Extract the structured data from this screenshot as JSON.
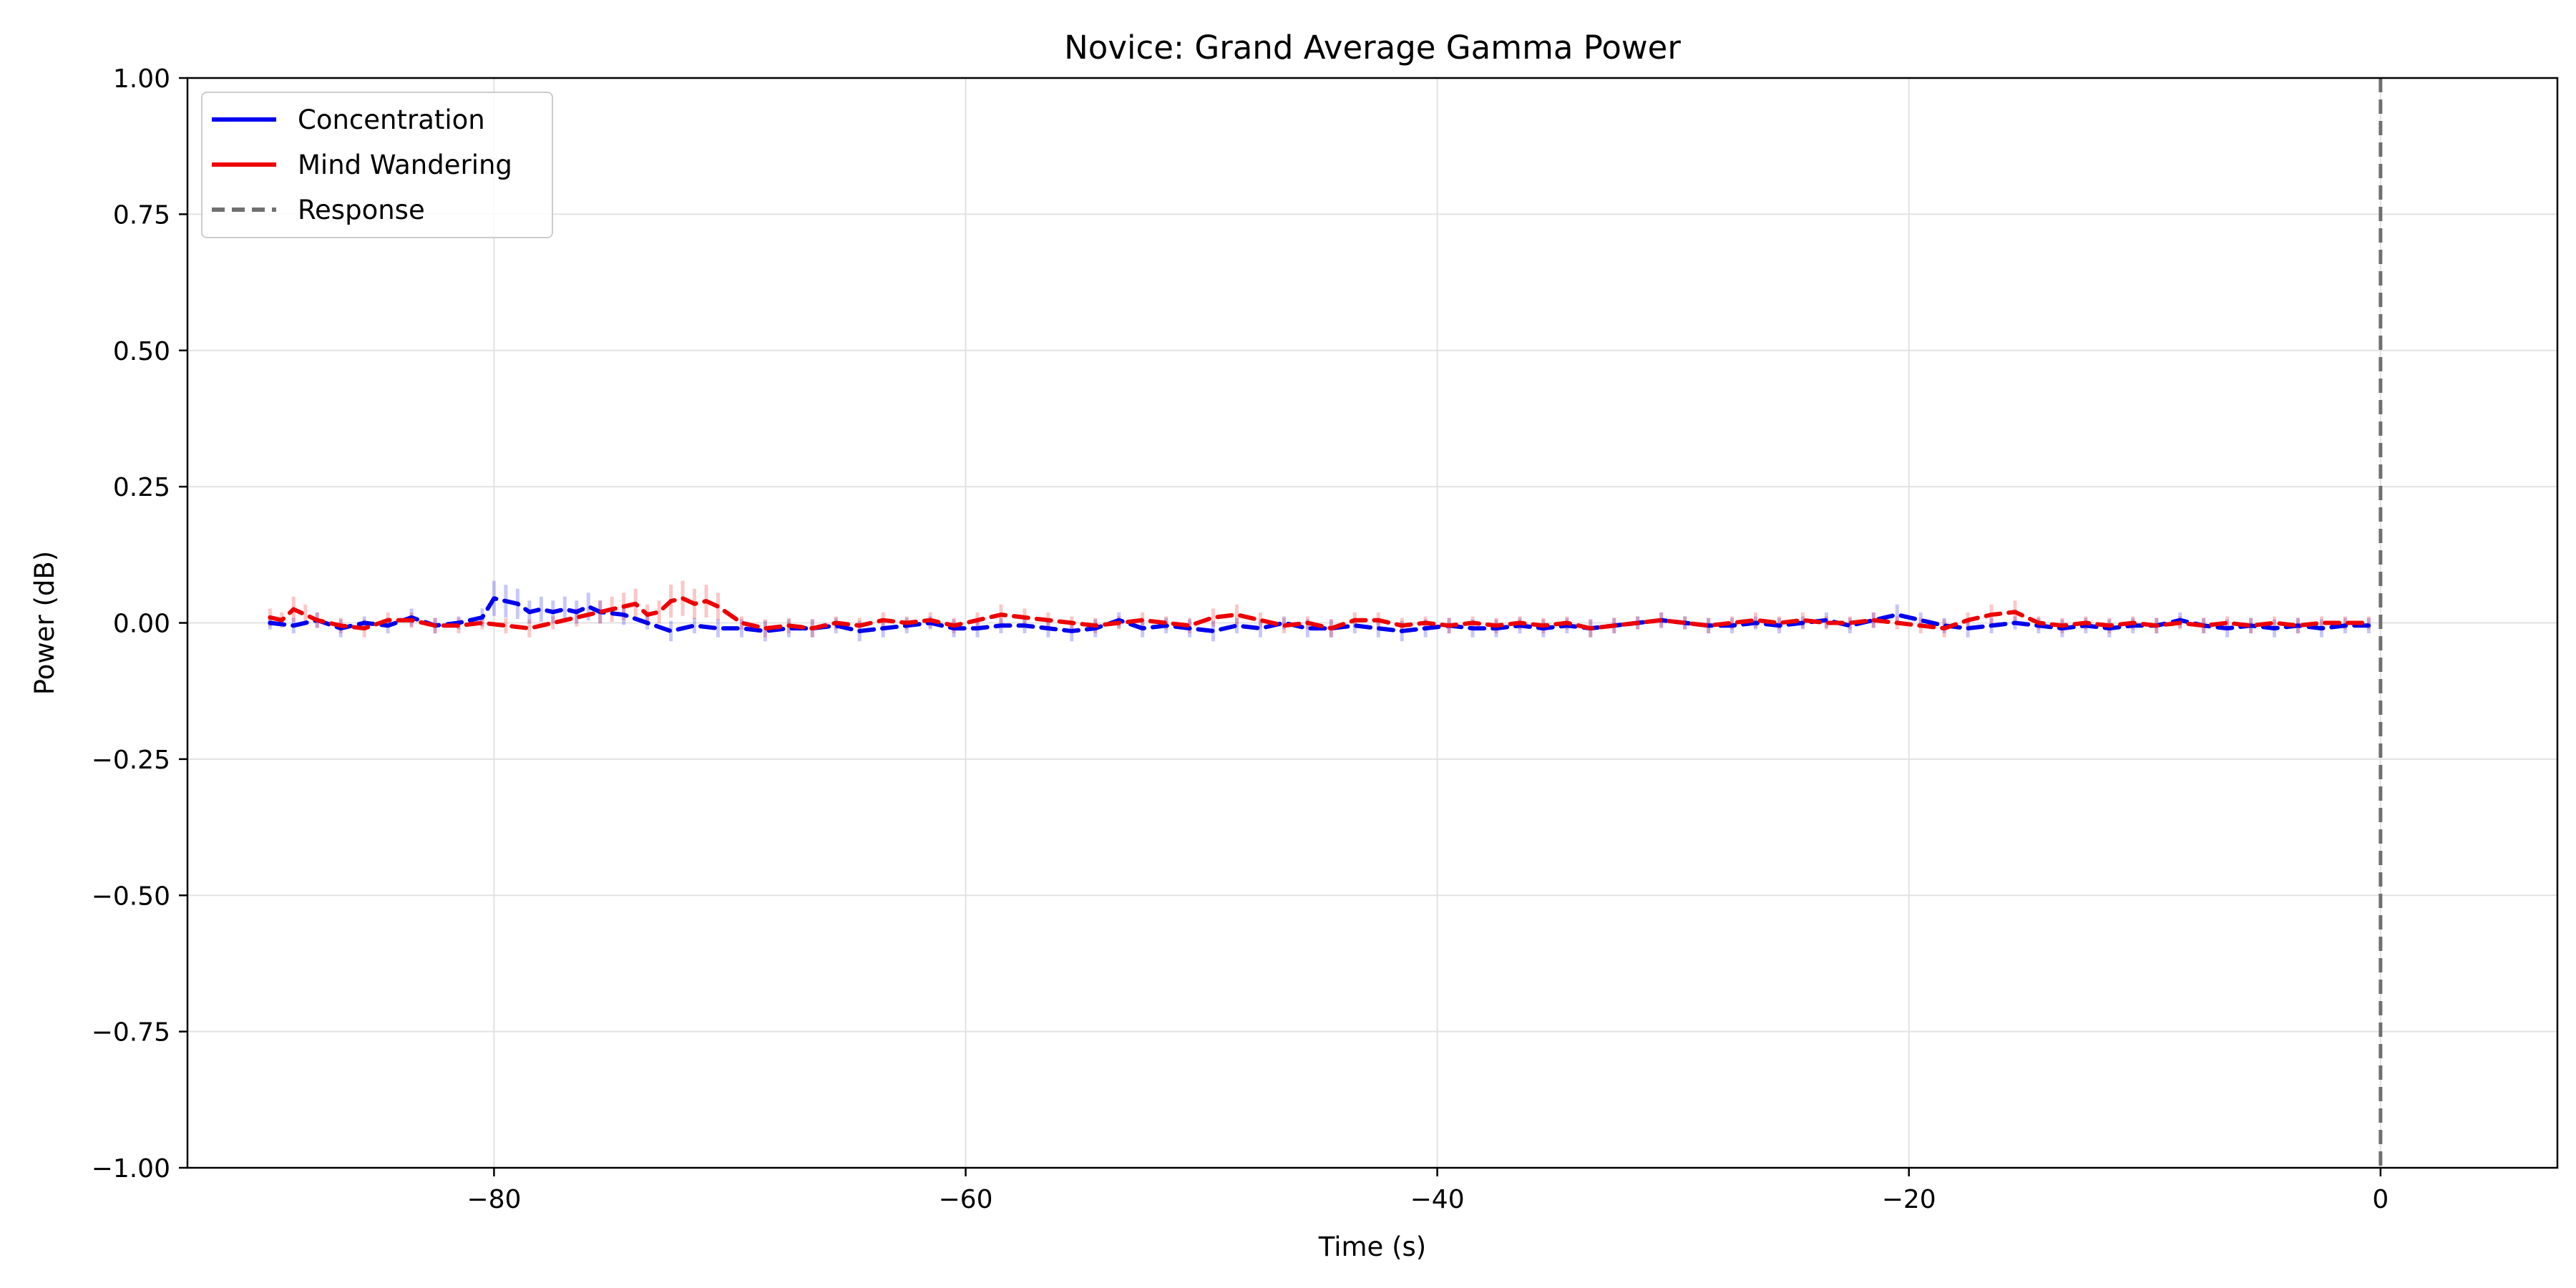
{
  "chart_data": {
    "type": "line",
    "title": "Novice: Grand Average Gamma Power",
    "xlabel": "Time (s)",
    "ylabel": "Power (dB)",
    "xlim": [
      -93,
      7.5
    ],
    "ylim": [
      -1,
      1
    ],
    "xticks": [
      -80,
      -60,
      -40,
      -20,
      0
    ],
    "xtick_labels": [
      "−80",
      "−60",
      "−40",
      "−20",
      "0"
    ],
    "yticks": [
      -1,
      -0.75,
      -0.5,
      -0.25,
      0,
      0.25,
      0.5,
      0.75,
      1
    ],
    "ytick_labels": [
      "−1.00",
      "−0.75",
      "−0.50",
      "−0.25",
      "0.00",
      "0.25",
      "0.50",
      "0.75",
      "1.00"
    ],
    "grid": true,
    "legend_position": "top-left",
    "series": [
      {
        "name": "Concentration",
        "color": "#0000ee",
        "x": [
          -89.5,
          -88.5,
          -87.5,
          -86.5,
          -85.5,
          -84.5,
          -83.5,
          -82.5,
          -81.5,
          -80.5,
          -80.0,
          -79.5,
          -79.0,
          -78.5,
          -78.0,
          -77.5,
          -77.0,
          -76.5,
          -76.0,
          -75.5,
          -74.5,
          -73.5,
          -72.5,
          -71.5,
          -70.5,
          -69.5,
          -68.5,
          -67.5,
          -66.5,
          -65.5,
          -64.5,
          -63.5,
          -62.5,
          -61.5,
          -60.5,
          -59.5,
          -58.5,
          -57.5,
          -56.5,
          -55.5,
          -54.5,
          -53.5,
          -52.5,
          -51.5,
          -50.5,
          -49.5,
          -48.5,
          -47.5,
          -46.5,
          -45.5,
          -44.5,
          -43.5,
          -42.5,
          -41.5,
          -40.5,
          -39.5,
          -38.5,
          -37.5,
          -36.5,
          -35.5,
          -34.5,
          -33.5,
          -32.5,
          -31.5,
          -30.5,
          -29.5,
          -28.5,
          -27.5,
          -26.5,
          -25.5,
          -24.5,
          -23.5,
          -22.5,
          -21.5,
          -20.5,
          -19.5,
          -18.5,
          -17.5,
          -16.5,
          -15.5,
          -14.5,
          -13.5,
          -12.5,
          -11.5,
          -10.5,
          -9.5,
          -8.5,
          -7.5,
          -6.5,
          -5.5,
          -4.5,
          -3.5,
          -2.5,
          -1.5,
          -0.5
        ],
        "y": [
          0.0,
          -0.005,
          0.005,
          -0.01,
          0.0,
          -0.005,
          0.01,
          -0.005,
          0.0,
          0.01,
          0.045,
          0.04,
          0.035,
          0.02,
          0.025,
          0.02,
          0.025,
          0.02,
          0.03,
          0.02,
          0.015,
          0.0,
          -0.015,
          -0.005,
          -0.01,
          -0.01,
          -0.015,
          -0.01,
          -0.01,
          -0.005,
          -0.015,
          -0.01,
          -0.005,
          0.0,
          -0.01,
          -0.01,
          -0.005,
          -0.005,
          -0.01,
          -0.015,
          -0.01,
          0.005,
          -0.01,
          -0.005,
          -0.01,
          -0.015,
          -0.005,
          -0.01,
          0.0,
          -0.01,
          -0.01,
          -0.005,
          -0.01,
          -0.015,
          -0.01,
          -0.005,
          -0.01,
          -0.01,
          -0.005,
          -0.01,
          -0.005,
          -0.01,
          -0.005,
          0.0,
          0.005,
          0.0,
          -0.005,
          -0.005,
          0.0,
          -0.005,
          0.0,
          0.005,
          -0.005,
          0.005,
          0.015,
          0.005,
          -0.005,
          -0.01,
          -0.005,
          0.0,
          -0.005,
          -0.01,
          -0.005,
          -0.01,
          -0.005,
          -0.005,
          0.005,
          -0.005,
          -0.01,
          -0.005,
          -0.01,
          -0.005,
          -0.01,
          -0.005,
          -0.005
        ]
      },
      {
        "name": "Mind Wandering",
        "color": "#ee0000",
        "x": [
          -89.5,
          -89.0,
          -88.5,
          -88.0,
          -87.5,
          -86.5,
          -85.5,
          -84.5,
          -83.5,
          -82.5,
          -81.5,
          -80.5,
          -79.5,
          -78.5,
          -77.5,
          -76.5,
          -75.5,
          -75.0,
          -74.5,
          -74.0,
          -73.5,
          -73.0,
          -72.5,
          -72.0,
          -71.5,
          -71.0,
          -70.5,
          -69.5,
          -68.5,
          -67.5,
          -66.5,
          -65.5,
          -64.5,
          -63.5,
          -62.5,
          -61.5,
          -60.5,
          -59.5,
          -58.5,
          -57.5,
          -56.5,
          -55.5,
          -54.5,
          -53.5,
          -52.5,
          -51.5,
          -50.5,
          -49.5,
          -48.5,
          -47.5,
          -46.5,
          -45.5,
          -44.5,
          -43.5,
          -42.5,
          -41.5,
          -40.5,
          -39.5,
          -38.5,
          -37.5,
          -36.5,
          -35.5,
          -34.5,
          -33.5,
          -32.5,
          -31.5,
          -30.5,
          -29.5,
          -28.5,
          -27.5,
          -26.5,
          -25.5,
          -24.5,
          -23.5,
          -22.5,
          -21.5,
          -20.5,
          -19.5,
          -18.5,
          -17.5,
          -16.5,
          -15.5,
          -14.5,
          -13.5,
          -12.5,
          -11.5,
          -10.5,
          -9.5,
          -8.5,
          -7.5,
          -6.5,
          -5.5,
          -4.5,
          -3.5,
          -2.5,
          -1.5,
          -0.5
        ],
        "y": [
          0.01,
          0.005,
          0.025,
          0.015,
          0.005,
          -0.005,
          -0.01,
          0.005,
          0.005,
          -0.005,
          -0.005,
          0.0,
          -0.005,
          -0.01,
          0.0,
          0.01,
          0.02,
          0.025,
          0.03,
          0.035,
          0.015,
          0.02,
          0.04,
          0.045,
          0.035,
          0.04,
          0.03,
          0.0,
          -0.01,
          -0.005,
          -0.01,
          0.0,
          -0.005,
          0.005,
          0.0,
          0.005,
          -0.005,
          0.005,
          0.015,
          0.01,
          0.005,
          0.0,
          -0.005,
          0.0,
          0.005,
          0.0,
          -0.005,
          0.01,
          0.015,
          0.005,
          -0.005,
          0.0,
          -0.01,
          0.005,
          0.005,
          -0.005,
          0.0,
          -0.005,
          0.0,
          -0.005,
          0.0,
          -0.005,
          0.0,
          -0.01,
          -0.005,
          0.0,
          0.005,
          0.0,
          -0.005,
          0.0,
          0.005,
          0.0,
          0.005,
          0.0,
          0.0,
          0.005,
          0.0,
          -0.005,
          -0.01,
          0.005,
          0.015,
          0.02,
          0.0,
          -0.005,
          0.0,
          -0.005,
          0.0,
          -0.005,
          0.0,
          -0.005,
          0.0,
          -0.005,
          0.0,
          -0.005,
          0.0,
          0.0,
          0.0
        ]
      }
    ],
    "response_line": {
      "name": "Response",
      "x": 0,
      "color": "#707070"
    },
    "legend": [
      {
        "label": "Concentration",
        "style": "solid",
        "color": "#0000ee"
      },
      {
        "label": "Mind Wandering",
        "style": "solid",
        "color": "#ee0000"
      },
      {
        "label": "Response",
        "style": "dashed",
        "color": "#707070"
      }
    ]
  }
}
